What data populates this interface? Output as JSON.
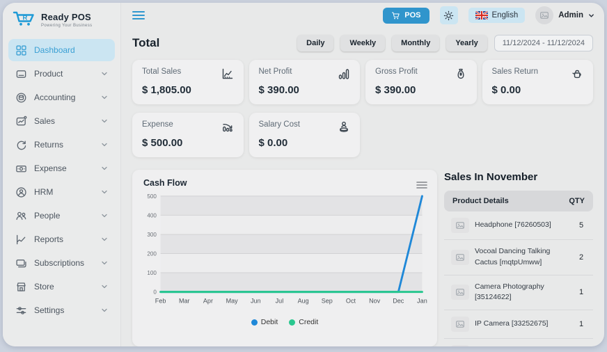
{
  "app": {
    "title": "Ready POS",
    "tagline": "Powering Your Business"
  },
  "topbar": {
    "pos_label": "POS",
    "language": "English",
    "user": "Admin"
  },
  "sidebar": {
    "items": [
      {
        "label": "Dashboard",
        "icon": "grid-icon",
        "active": true,
        "chevron": false
      },
      {
        "label": "Product",
        "icon": "product-icon",
        "chevron": true
      },
      {
        "label": "Accounting",
        "icon": "accounting-icon",
        "chevron": true
      },
      {
        "label": "Sales",
        "icon": "sales-icon",
        "chevron": true
      },
      {
        "label": "Returns",
        "icon": "returns-icon",
        "chevron": true
      },
      {
        "label": "Expense",
        "icon": "expense-icon",
        "chevron": true
      },
      {
        "label": "HRM",
        "icon": "hrm-icon",
        "chevron": true
      },
      {
        "label": "People",
        "icon": "people-icon",
        "chevron": true
      },
      {
        "label": "Reports",
        "icon": "reports-icon",
        "chevron": true
      },
      {
        "label": "Subscriptions",
        "icon": "subscriptions-icon",
        "chevron": true
      },
      {
        "label": "Store",
        "icon": "store-icon",
        "chevron": true
      },
      {
        "label": "Settings",
        "icon": "settings-icon",
        "chevron": true
      }
    ]
  },
  "filters": {
    "title": "Total",
    "periods": [
      {
        "label": "Daily"
      },
      {
        "label": "Weekly"
      },
      {
        "label": "Monthly"
      },
      {
        "label": "Yearly"
      }
    ],
    "date_range": "11/12/2024 - 11/12/2024"
  },
  "stats": [
    {
      "label": "Total Sales",
      "value": "$ 1,805.00",
      "icon": "line-chart-icon"
    },
    {
      "label": "Net Profit",
      "value": "$ 390.00",
      "icon": "bar-chart-icon"
    },
    {
      "label": "Gross Profit",
      "value": "$ 390.00",
      "icon": "money-bag-icon"
    },
    {
      "label": "Sales Return",
      "value": "$ 0.00",
      "icon": "return-icon"
    },
    {
      "label": "Expense",
      "value": "$ 500.00",
      "icon": "declining-chart-icon"
    },
    {
      "label": "Salary Cost",
      "value": "$ 0.00",
      "icon": "salary-icon"
    }
  ],
  "chart_data": {
    "type": "line",
    "title": "Cash Flow",
    "categories": [
      "Feb",
      "Mar",
      "Apr",
      "May",
      "Jun",
      "Jul",
      "Aug",
      "Sep",
      "Oct",
      "Nov",
      "Dec",
      "Jan"
    ],
    "series": [
      {
        "name": "Debit",
        "color": "#1f88d8",
        "values": [
          0,
          0,
          0,
          0,
          0,
          0,
          0,
          0,
          0,
          0,
          0,
          500
        ]
      },
      {
        "name": "Credit",
        "color": "#29c78f",
        "values": [
          0,
          0,
          0,
          0,
          0,
          0,
          0,
          0,
          0,
          0,
          0,
          0
        ]
      }
    ],
    "xlabel": "",
    "ylabel": "",
    "ylim": [
      0,
      500
    ],
    "yticks": [
      0,
      100,
      200,
      300,
      400,
      500
    ],
    "grid": true,
    "legend_position": "bottom",
    "band_colors": [
      "#e3e3e5",
      "#ededee"
    ]
  },
  "sales_panel": {
    "title": "Sales In November",
    "columns": [
      "Product Details",
      "QTY"
    ],
    "rows": [
      {
        "product": "Headphone [76260503]",
        "qty": "5"
      },
      {
        "product": "Vocoal Dancing Talking Cactus [mqtpUmww]",
        "qty": "2"
      },
      {
        "product": "Camera Photography [35124622]",
        "qty": "1"
      },
      {
        "product": "IP Camera [33252675]",
        "qty": "1"
      }
    ],
    "partial_row_visible": true
  },
  "colors": {
    "accent_blue": "#3095cc",
    "light_blue_chip": "#cbe5f2",
    "debit_line": "#1f88d8",
    "credit_line": "#29c78f"
  }
}
